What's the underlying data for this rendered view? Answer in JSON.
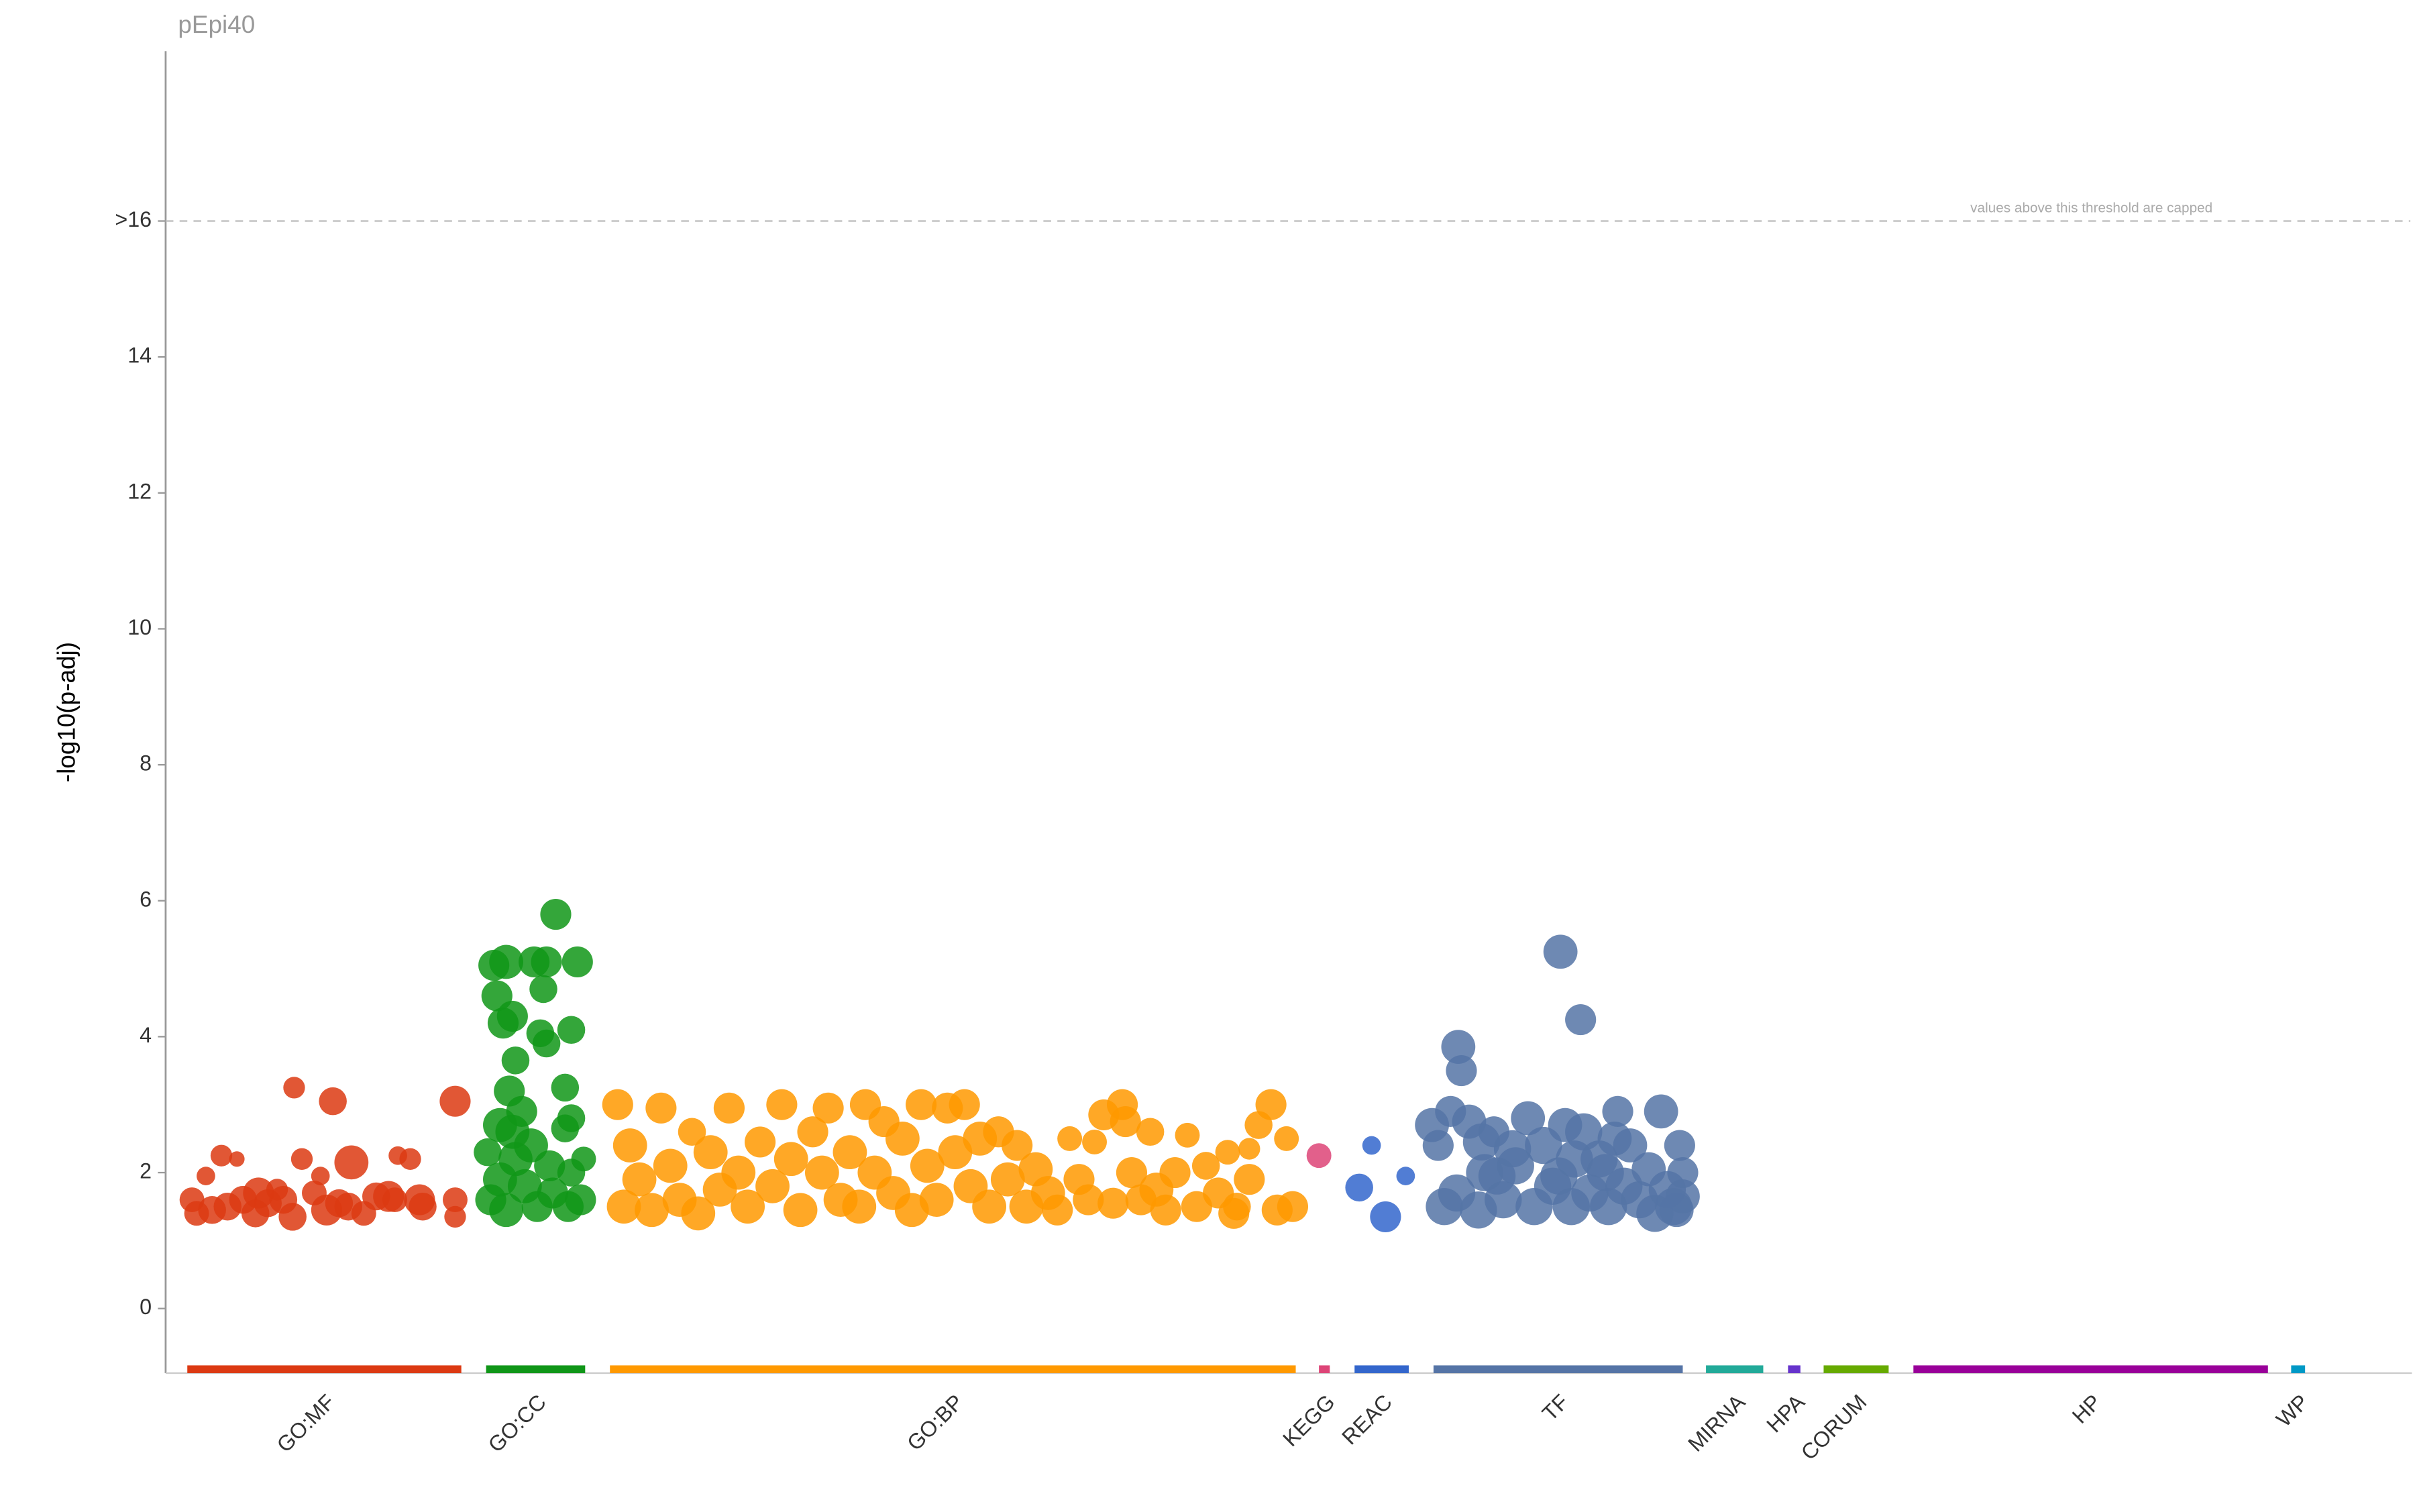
{
  "chart_data": {
    "type": "scatter",
    "title": "pEpi40",
    "y_label": "-log10(p-adj)",
    "threshold": 16,
    "threshold_note": "values above this threshold are capped",
    "xlim": [
      0,
      1450
    ],
    "ylim": [
      -0.95,
      18.5
    ],
    "yticks": [
      0,
      2,
      4,
      6,
      8,
      10,
      12,
      14,
      {
        "value": 16,
        "label": ">16"
      }
    ],
    "sources": [
      {
        "name": "GO:MF",
        "color": "#dc3912",
        "range": [
          14,
          191
        ],
        "points": [
          [
            17,
            1.6,
            8
          ],
          [
            20,
            1.4,
            8
          ],
          [
            26,
            1.95,
            6
          ],
          [
            36,
            2.25,
            7
          ],
          [
            46,
            2.2,
            5
          ],
          [
            30,
            1.45,
            9
          ],
          [
            40,
            1.5,
            9
          ],
          [
            50,
            1.6,
            9
          ],
          [
            58,
            1.4,
            9
          ],
          [
            66,
            1.55,
            9
          ],
          [
            72,
            1.75,
            7
          ],
          [
            76,
            1.6,
            9
          ],
          [
            83,
            3.25,
            7
          ],
          [
            88,
            2.2,
            7
          ],
          [
            82,
            1.35,
            9
          ],
          [
            96,
            1.7,
            8
          ],
          [
            100,
            1.95,
            6
          ],
          [
            108,
            3.05,
            9
          ],
          [
            112,
            1.55,
            9
          ],
          [
            120,
            2.15,
            11
          ],
          [
            118,
            1.5,
            9
          ],
          [
            128,
            1.4,
            8
          ],
          [
            136,
            1.65,
            9
          ],
          [
            150,
            2.25,
            6
          ],
          [
            158,
            2.2,
            7
          ],
          [
            148,
            1.6,
            8
          ],
          [
            164,
            1.6,
            10
          ],
          [
            166,
            1.5,
            9
          ],
          [
            187,
            1.35,
            7
          ],
          [
            187,
            1.6,
            8
          ],
          [
            187,
            3.05,
            10
          ],
          [
            144,
            1.65,
            10
          ],
          [
            60,
            1.7,
            10
          ],
          [
            104,
            1.45,
            10
          ]
        ]
      },
      {
        "name": "GO:CC",
        "color": "#109618",
        "range": [
          207,
          271
        ],
        "points": [
          [
            208,
            2.3,
            9
          ],
          [
            212,
            5.05,
            10
          ],
          [
            220,
            5.1,
            11
          ],
          [
            214,
            4.6,
            10
          ],
          [
            218,
            4.2,
            10
          ],
          [
            224,
            4.3,
            10
          ],
          [
            226,
            3.65,
            9
          ],
          [
            222,
            3.2,
            10
          ],
          [
            230,
            2.9,
            10
          ],
          [
            238,
            5.1,
            10
          ],
          [
            244,
            4.7,
            9
          ],
          [
            246,
            5.1,
            10
          ],
          [
            242,
            4.05,
            9
          ],
          [
            246,
            3.9,
            9
          ],
          [
            252,
            5.8,
            10
          ],
          [
            266,
            5.1,
            10
          ],
          [
            262,
            4.1,
            9
          ],
          [
            258,
            3.25,
            9
          ],
          [
            258,
            2.65,
            9
          ],
          [
            262,
            2.8,
            9
          ],
          [
            270,
            2.2,
            8
          ],
          [
            216,
            2.7,
            11
          ],
          [
            224,
            2.6,
            11
          ],
          [
            210,
            1.6,
            10
          ],
          [
            220,
            1.45,
            11
          ],
          [
            232,
            1.8,
            11
          ],
          [
            240,
            1.5,
            10
          ],
          [
            250,
            1.7,
            10
          ],
          [
            260,
            1.5,
            10
          ],
          [
            268,
            1.6,
            10
          ],
          [
            226,
            2.2,
            11
          ],
          [
            236,
            2.4,
            11
          ],
          [
            216,
            1.9,
            11
          ],
          [
            248,
            2.1,
            10
          ],
          [
            262,
            2.0,
            9
          ]
        ]
      },
      {
        "name": "GO:BP",
        "color": "#ff9900",
        "range": [
          287,
          730
        ],
        "points": [
          [
            292,
            3.0,
            10
          ],
          [
            300,
            2.4,
            11
          ],
          [
            296,
            1.5,
            11
          ],
          [
            306,
            1.9,
            11
          ],
          [
            314,
            1.45,
            11
          ],
          [
            320,
            2.95,
            10
          ],
          [
            326,
            2.1,
            11
          ],
          [
            332,
            1.6,
            11
          ],
          [
            340,
            2.6,
            9
          ],
          [
            344,
            1.4,
            11
          ],
          [
            352,
            2.3,
            11
          ],
          [
            358,
            1.75,
            11
          ],
          [
            364,
            2.95,
            10
          ],
          [
            370,
            2.0,
            11
          ],
          [
            376,
            1.5,
            11
          ],
          [
            384,
            2.45,
            10
          ],
          [
            392,
            1.8,
            11
          ],
          [
            398,
            3.0,
            10
          ],
          [
            404,
            2.2,
            11
          ],
          [
            410,
            1.45,
            11
          ],
          [
            418,
            2.6,
            10
          ],
          [
            424,
            2.0,
            11
          ],
          [
            428,
            2.95,
            10
          ],
          [
            436,
            1.6,
            11
          ],
          [
            442,
            2.3,
            11
          ],
          [
            448,
            1.5,
            11
          ],
          [
            452,
            3.0,
            10
          ],
          [
            458,
            2.0,
            11
          ],
          [
            464,
            2.75,
            10
          ],
          [
            470,
            1.7,
            11
          ],
          [
            476,
            2.5,
            11
          ],
          [
            482,
            1.45,
            11
          ],
          [
            488,
            3.0,
            10
          ],
          [
            492,
            2.1,
            11
          ],
          [
            498,
            1.6,
            11
          ],
          [
            505,
            2.95,
            10
          ],
          [
            510,
            2.3,
            11
          ],
          [
            516,
            3.0,
            10
          ],
          [
            520,
            1.8,
            11
          ],
          [
            526,
            2.5,
            11
          ],
          [
            532,
            1.5,
            11
          ],
          [
            538,
            2.6,
            10
          ],
          [
            544,
            1.9,
            11
          ],
          [
            550,
            2.4,
            10
          ],
          [
            556,
            1.5,
            11
          ],
          [
            562,
            2.05,
            11
          ],
          [
            570,
            1.7,
            11
          ],
          [
            576,
            1.45,
            10
          ],
          [
            584,
            2.5,
            8
          ],
          [
            590,
            1.9,
            10
          ],
          [
            596,
            1.6,
            10
          ],
          [
            600,
            2.45,
            8
          ],
          [
            606,
            2.85,
            10
          ],
          [
            612,
            1.55,
            10
          ],
          [
            618,
            3.0,
            10
          ],
          [
            624,
            2.0,
            10
          ],
          [
            630,
            1.6,
            10
          ],
          [
            636,
            2.6,
            9
          ],
          [
            640,
            1.75,
            11
          ],
          [
            646,
            1.45,
            10
          ],
          [
            652,
            2.0,
            10
          ],
          [
            660,
            2.55,
            8
          ],
          [
            666,
            1.5,
            10
          ],
          [
            672,
            2.1,
            9
          ],
          [
            680,
            1.7,
            10
          ],
          [
            686,
            2.3,
            8
          ],
          [
            692,
            1.5,
            9
          ],
          [
            700,
            1.9,
            10
          ],
          [
            706,
            2.7,
            9
          ],
          [
            714,
            3.0,
            10
          ],
          [
            718,
            1.45,
            10
          ],
          [
            724,
            2.5,
            8
          ],
          [
            728,
            1.5,
            10
          ],
          [
            700,
            2.35,
            7
          ],
          [
            690,
            1.4,
            10
          ],
          [
            620,
            2.75,
            10
          ]
        ]
      },
      {
        "name": "KEGG",
        "color": "#dd4477",
        "range": [
          745,
          752
        ],
        "points": [
          [
            745,
            2.25,
            8
          ]
        ]
      },
      {
        "name": "REAC",
        "color": "#3366cc",
        "range": [
          768,
          803
        ],
        "points": [
          [
            771,
            1.78,
            9
          ],
          [
            779,
            2.4,
            6
          ],
          [
            788,
            1.35,
            10
          ],
          [
            801,
            1.95,
            6
          ]
        ]
      },
      {
        "name": "TF",
        "color": "#5574a6",
        "range": [
          819,
          980
        ],
        "points": [
          [
            818,
            2.7,
            11
          ],
          [
            822,
            2.4,
            10
          ],
          [
            830,
            2.9,
            10
          ],
          [
            835,
            3.85,
            11
          ],
          [
            837,
            3.5,
            10
          ],
          [
            826,
            1.5,
            12
          ],
          [
            834,
            1.7,
            12
          ],
          [
            842,
            2.75,
            11
          ],
          [
            848,
            1.45,
            12
          ],
          [
            852,
            2.0,
            12
          ],
          [
            858,
            2.6,
            10
          ],
          [
            864,
            1.6,
            12
          ],
          [
            872,
            2.1,
            12
          ],
          [
            880,
            2.8,
            11
          ],
          [
            884,
            1.5,
            12
          ],
          [
            890,
            2.4,
            12
          ],
          [
            896,
            1.8,
            12
          ],
          [
            901,
            5.25,
            11
          ],
          [
            904,
            2.7,
            11
          ],
          [
            908,
            1.5,
            12
          ],
          [
            914,
            4.25,
            10
          ],
          [
            916,
            2.6,
            12
          ],
          [
            920,
            1.7,
            12
          ],
          [
            926,
            2.2,
            12
          ],
          [
            932,
            1.5,
            12
          ],
          [
            936,
            2.5,
            11
          ],
          [
            938,
            2.9,
            10
          ],
          [
            942,
            1.8,
            12
          ],
          [
            946,
            2.4,
            11
          ],
          [
            952,
            1.6,
            12
          ],
          [
            958,
            2.05,
            11
          ],
          [
            962,
            1.4,
            12
          ],
          [
            966,
            2.9,
            11
          ],
          [
            970,
            1.75,
            12
          ],
          [
            974,
            1.5,
            12
          ],
          [
            978,
            2.4,
            10
          ],
          [
            980,
            2.0,
            10
          ],
          [
            980,
            1.65,
            11
          ],
          [
            976,
            1.45,
            11
          ],
          [
            850,
            2.45,
            12
          ],
          [
            870,
            2.35,
            12
          ],
          [
            910,
            2.2,
            12
          ],
          [
            930,
            2.0,
            12
          ],
          [
            860,
            1.95,
            12
          ],
          [
            900,
            1.95,
            12
          ]
        ]
      },
      {
        "name": "MIRNA",
        "color": "#22aa99",
        "range": [
          995,
          1032
        ],
        "points": []
      },
      {
        "name": "HPA",
        "color": "#6633cc",
        "range": [
          1048,
          1056
        ],
        "points": []
      },
      {
        "name": "CORUM",
        "color": "#66aa00",
        "range": [
          1071,
          1113
        ],
        "points": []
      },
      {
        "name": "HP",
        "color": "#990099",
        "range": [
          1129,
          1358
        ],
        "points": []
      },
      {
        "name": "WP",
        "color": "#0099c6",
        "range": [
          1373,
          1382
        ],
        "points": []
      }
    ]
  }
}
